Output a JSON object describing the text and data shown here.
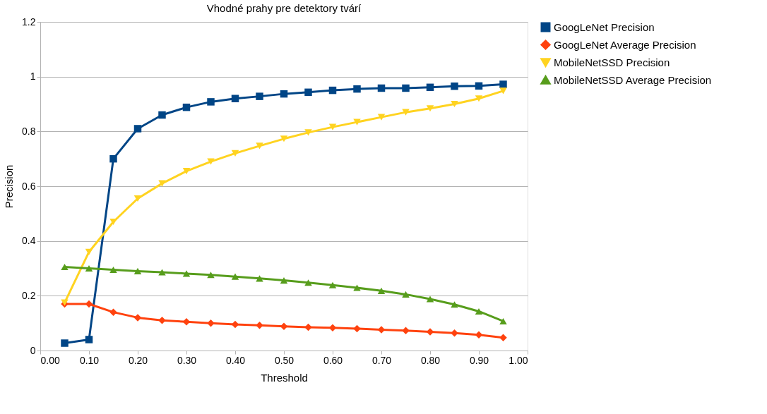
{
  "chart_data": {
    "type": "line",
    "title": "Vhodné prahy pre detektory tvárí",
    "xlabel": "Threshold",
    "ylabel": "Precision",
    "x": [
      0.05,
      0.1,
      0.15,
      0.2,
      0.25,
      0.3,
      0.35,
      0.4,
      0.45,
      0.5,
      0.55,
      0.6,
      0.65,
      0.7,
      0.75,
      0.8,
      0.85,
      0.9,
      0.95
    ],
    "series": [
      {
        "name": "GoogLeNet Precision",
        "color": "#004586",
        "marker": "square",
        "values": [
          0.027,
          0.04,
          0.7,
          0.81,
          0.86,
          0.888,
          0.908,
          0.92,
          0.928,
          0.937,
          0.943,
          0.95,
          0.955,
          0.958,
          0.958,
          0.961,
          0.965,
          0.966,
          0.972
        ]
      },
      {
        "name": "GoogLeNet Average Precision",
        "color": "#ff420e",
        "marker": "diamond",
        "values": [
          0.17,
          0.17,
          0.14,
          0.12,
          0.11,
          0.105,
          0.1,
          0.095,
          0.092,
          0.088,
          0.085,
          0.083,
          0.08,
          0.076,
          0.073,
          0.068,
          0.064,
          0.057,
          0.047
        ]
      },
      {
        "name": "MobileNetSSD Precision",
        "color": "#ffd320",
        "marker": "triangle-down",
        "values": [
          0.175,
          0.36,
          0.47,
          0.555,
          0.61,
          0.655,
          0.69,
          0.72,
          0.747,
          0.773,
          0.796,
          0.816,
          0.834,
          0.852,
          0.87,
          0.884,
          0.9,
          0.92,
          0.948
        ]
      },
      {
        "name": "MobileNetSSD Average Precision",
        "color": "#579d1c",
        "marker": "triangle",
        "values": [
          0.305,
          0.3,
          0.295,
          0.29,
          0.286,
          0.281,
          0.276,
          0.27,
          0.263,
          0.256,
          0.248,
          0.239,
          0.229,
          0.218,
          0.205,
          0.188,
          0.168,
          0.143,
          0.107
        ]
      }
    ],
    "xlim": [
      0,
      1
    ],
    "xticks": [
      {
        "value": 0,
        "label": "0.00"
      },
      {
        "value": 0.1,
        "label": "0.10"
      },
      {
        "value": 0.2,
        "label": "0.20"
      },
      {
        "value": 0.3,
        "label": "0.30"
      },
      {
        "value": 0.4,
        "label": "0.40"
      },
      {
        "value": 0.5,
        "label": "0.50"
      },
      {
        "value": 0.6,
        "label": "0.60"
      },
      {
        "value": 0.7,
        "label": "0.70"
      },
      {
        "value": 0.8,
        "label": "0.80"
      },
      {
        "value": 0.9,
        "label": "0.90"
      },
      {
        "value": 1,
        "label": "1.00"
      }
    ],
    "ylim": [
      0,
      1.2
    ],
    "yticks": [
      0,
      0.2,
      0.4,
      0.6,
      0.8,
      1,
      1.2
    ],
    "grid": "y",
    "legend": "right",
    "line_style": "solid"
  }
}
